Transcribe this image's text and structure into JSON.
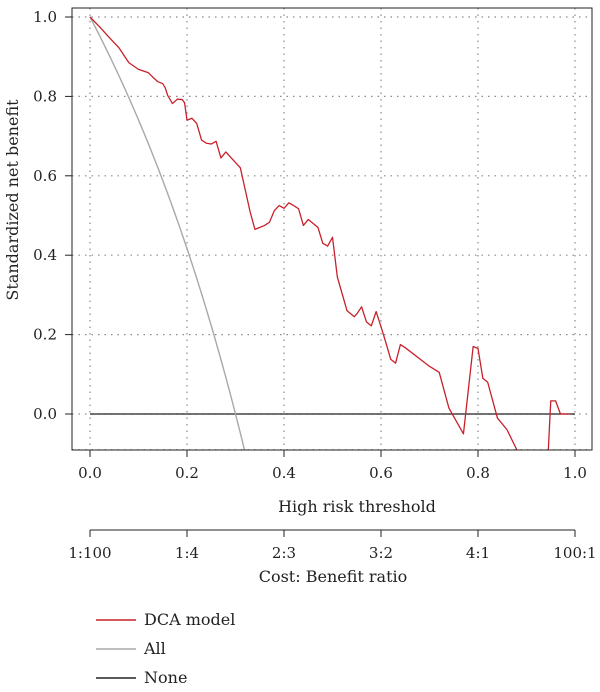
{
  "chart_data": {
    "type": "line",
    "xlabel": "High risk threshold",
    "ylabel": "Standardized net benefit",
    "xlim": [
      0,
      1
    ],
    "ylim": [
      -0.09,
      1.0
    ],
    "grid": true,
    "legend_position": "bottom-left",
    "x_ticks": [
      "0.0",
      "0.2",
      "0.4",
      "0.6",
      "0.8",
      "1.0"
    ],
    "y_ticks": [
      "0.0",
      "0.2",
      "0.4",
      "0.6",
      "0.8",
      "1.0"
    ],
    "secondary_axis": {
      "label": "Cost: Benefit ratio",
      "ticks": [
        "1:100",
        "1:4",
        "2:3",
        "3:2",
        "4:1",
        "100:1"
      ]
    },
    "series": [
      {
        "name": "DCA model",
        "color": "#c8202a",
        "segments": [
          [
            [
              0.0,
              1.0
            ],
            [
              0.02,
              0.975
            ],
            [
              0.04,
              0.948
            ],
            [
              0.06,
              0.922
            ],
            [
              0.08,
              0.885
            ],
            [
              0.1,
              0.868
            ],
            [
              0.12,
              0.86
            ],
            [
              0.13,
              0.848
            ],
            [
              0.14,
              0.837
            ],
            [
              0.15,
              0.832
            ],
            [
              0.155,
              0.822
            ],
            [
              0.16,
              0.803
            ],
            [
              0.17,
              0.782
            ],
            [
              0.18,
              0.793
            ],
            [
              0.19,
              0.792
            ],
            [
              0.195,
              0.784
            ],
            [
              0.2,
              0.74
            ],
            [
              0.21,
              0.745
            ],
            [
              0.22,
              0.732
            ],
            [
              0.23,
              0.69
            ],
            [
              0.24,
              0.682
            ],
            [
              0.25,
              0.68
            ],
            [
              0.26,
              0.687
            ],
            [
              0.27,
              0.645
            ],
            [
              0.28,
              0.66
            ],
            [
              0.31,
              0.62
            ],
            [
              0.33,
              0.51
            ],
            [
              0.34,
              0.465
            ],
            [
              0.36,
              0.475
            ],
            [
              0.37,
              0.483
            ],
            [
              0.38,
              0.512
            ],
            [
              0.39,
              0.525
            ],
            [
              0.4,
              0.518
            ],
            [
              0.41,
              0.532
            ],
            [
              0.42,
              0.525
            ],
            [
              0.43,
              0.517
            ],
            [
              0.44,
              0.475
            ],
            [
              0.45,
              0.49
            ],
            [
              0.47,
              0.47
            ],
            [
              0.48,
              0.43
            ],
            [
              0.49,
              0.423
            ],
            [
              0.5,
              0.445
            ],
            [
              0.51,
              0.345
            ],
            [
              0.53,
              0.26
            ],
            [
              0.545,
              0.245
            ],
            [
              0.55,
              0.252
            ],
            [
              0.56,
              0.27
            ],
            [
              0.57,
              0.232
            ],
            [
              0.58,
              0.222
            ],
            [
              0.59,
              0.258
            ],
            [
              0.6,
              0.22
            ],
            [
              0.61,
              0.18
            ],
            [
              0.62,
              0.138
            ],
            [
              0.63,
              0.128
            ],
            [
              0.64,
              0.175
            ],
            [
              0.65,
              0.167
            ],
            [
              0.7,
              0.12
            ],
            [
              0.72,
              0.105
            ],
            [
              0.74,
              0.015
            ],
            [
              0.77,
              -0.05
            ],
            [
              0.79,
              0.17
            ],
            [
              0.8,
              0.165
            ],
            [
              0.81,
              0.09
            ],
            [
              0.82,
              0.08
            ],
            [
              0.84,
              -0.01
            ],
            [
              0.86,
              -0.04
            ],
            [
              0.88,
              -0.09
            ]
          ],
          [
            [
              0.945,
              -0.09
            ],
            [
              0.95,
              0.033
            ],
            [
              0.96,
              0.033
            ],
            [
              0.97,
              0.0
            ],
            [
              0.99,
              0.0
            ]
          ]
        ]
      },
      {
        "name": "All",
        "color": "#a8a8a8",
        "prevalence": 0.3
      },
      {
        "name": "None",
        "color": "#222222",
        "value": 0.0
      }
    ]
  }
}
